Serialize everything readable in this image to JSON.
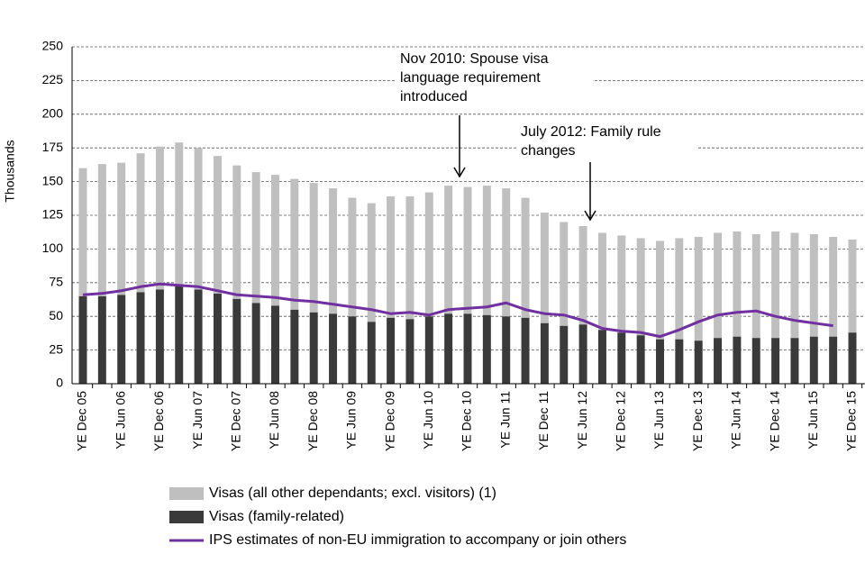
{
  "chart_data": {
    "type": "bar",
    "y_label": "Thousands",
    "categories": [
      "YE Dec 05",
      null,
      "YE Jun 06",
      null,
      "YE Dec 06",
      null,
      "YE Jun 07",
      null,
      "YE Dec 07",
      null,
      "YE Jun 08",
      null,
      "YE Dec 08",
      null,
      "YE Jun 09",
      null,
      "YE Dec 09",
      null,
      "YE Jun 10",
      null,
      "YE Dec 10",
      null,
      "YE Jun 11",
      null,
      "YE Dec 11",
      null,
      "YE Jun 12",
      null,
      "YE Dec 12",
      null,
      "YE Jun 13",
      null,
      "YE Dec 13",
      null,
      "YE Jun 14",
      null,
      "YE Dec 14",
      null,
      "YE Jun 15",
      null,
      "YE Dec 15"
    ],
    "series": [
      {
        "name": "Visas (all other dependants; excl. visitors) (1)",
        "color": "#bfbfbf",
        "kind": "bar",
        "values": [
          95,
          98,
          98,
          103,
          106,
          106,
          105,
          102,
          99,
          97,
          97,
          97,
          96,
          93,
          88,
          88,
          90,
          91,
          92,
          95,
          94,
          96,
          95,
          89,
          82,
          77,
          73,
          72,
          72,
          72,
          73,
          75,
          77,
          78,
          78,
          77,
          79,
          78,
          76,
          74,
          69
        ]
      },
      {
        "name": "Visas (family-related)",
        "color": "#3a3a3a",
        "kind": "bar",
        "values": [
          65,
          65,
          66,
          68,
          70,
          73,
          70,
          67,
          63,
          60,
          58,
          55,
          53,
          52,
          50,
          46,
          49,
          48,
          50,
          52,
          52,
          51,
          50,
          49,
          45,
          43,
          44,
          40,
          38,
          36,
          33,
          33,
          32,
          34,
          35,
          34,
          34,
          34,
          35,
          35,
          38
        ]
      },
      {
        "name": "IPS estimates of non-EU immigration to accompany or join others",
        "color": "#7030a0",
        "kind": "line",
        "values": [
          66,
          67,
          69,
          72,
          74,
          73,
          72,
          69,
          66,
          65,
          64,
          62,
          61,
          59,
          57,
          55,
          52,
          53,
          51,
          55,
          56,
          57,
          60,
          55,
          52,
          51,
          47,
          41,
          39,
          38,
          35,
          40,
          46,
          51,
          53,
          54,
          50,
          47,
          45,
          43,
          null
        ]
      }
    ],
    "ylim": [
      0,
      250
    ],
    "yticks": [
      0,
      25,
      50,
      75,
      100,
      125,
      150,
      175,
      200,
      225,
      250
    ],
    "grid": true,
    "annotations": [
      {
        "lines": [
          "Nov 2010: Spouse visa",
          "language requirement",
          "introduced"
        ]
      },
      {
        "lines": [
          "July 2012: Family rule",
          "changes"
        ]
      }
    ]
  }
}
